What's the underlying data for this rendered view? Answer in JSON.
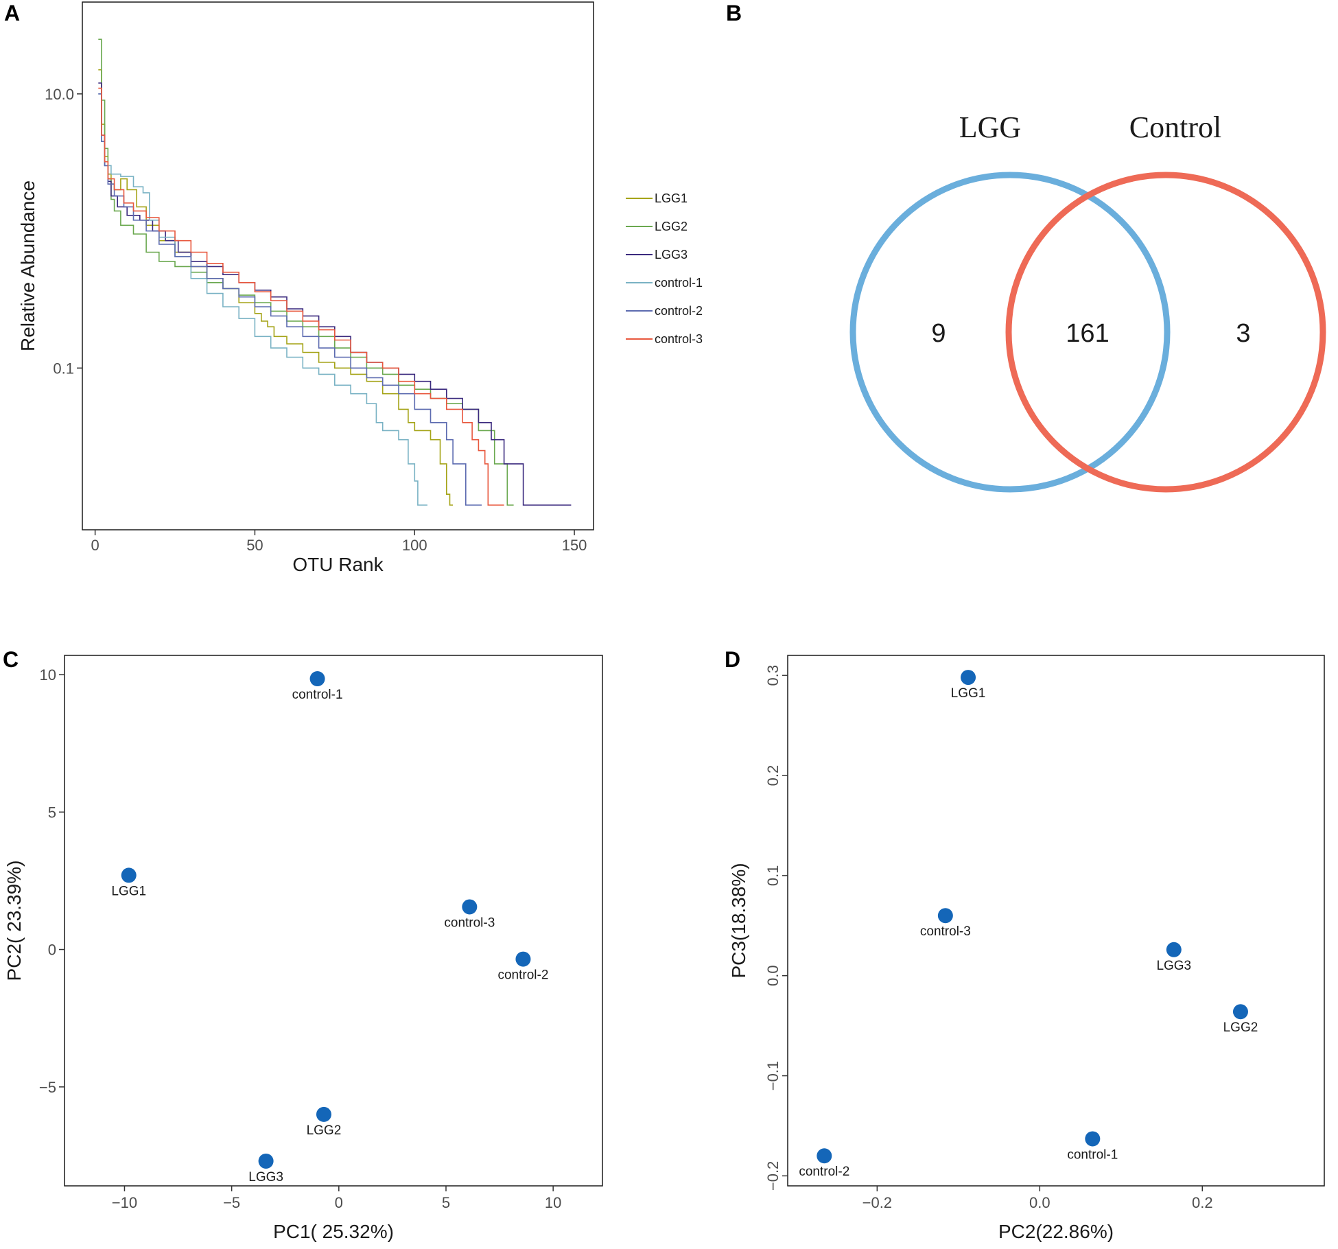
{
  "panels": {
    "a": "A",
    "b": "B",
    "c": "C",
    "d": "D"
  },
  "chart_data": [
    {
      "id": "A",
      "type": "line",
      "title": "",
      "xlabel": "OTU Rank",
      "ylabel": "Relative Abundance",
      "xlim": [
        -4,
        156
      ],
      "ylim_log10": [
        -2.18,
        1.67
      ],
      "y_scale": "log",
      "xticks": [
        0,
        50,
        100,
        150
      ],
      "xtick_labels": [
        "0",
        "50",
        "100",
        "150"
      ],
      "yticks": [
        10.0,
        0.1
      ],
      "ytick_labels": [
        "10.0",
        "0.1"
      ],
      "legend_position": "right",
      "series": [
        {
          "name": "LGG1",
          "color": "#a5a418",
          "points": [
            [
              1,
              15
            ],
            [
              2,
              6
            ],
            [
              3,
              3.5
            ],
            [
              4,
              2.6
            ],
            [
              5,
              2.2
            ],
            [
              6,
              2.0
            ],
            [
              8,
              2.4
            ],
            [
              10,
              2.0
            ],
            [
              13,
              1.5
            ],
            [
              16,
              1.1
            ],
            [
              20,
              0.85
            ],
            [
              25,
              0.7
            ],
            [
              30,
              0.55
            ],
            [
              35,
              0.45
            ],
            [
              40,
              0.38
            ],
            [
              45,
              0.3
            ],
            [
              50,
              0.25
            ],
            [
              52,
              0.22
            ],
            [
              54,
              0.2
            ],
            [
              56,
              0.17
            ],
            [
              60,
              0.15
            ],
            [
              65,
              0.13
            ],
            [
              70,
              0.11
            ],
            [
              75,
              0.1
            ],
            [
              80,
              0.09
            ],
            [
              85,
              0.08
            ],
            [
              90,
              0.065
            ],
            [
              95,
              0.05
            ],
            [
              98,
              0.04
            ],
            [
              100,
              0.035
            ],
            [
              105,
              0.03
            ],
            [
              108,
              0.02
            ],
            [
              110,
              0.012
            ],
            [
              111,
              0.01
            ],
            [
              112,
              0.01
            ]
          ]
        },
        {
          "name": "LGG2",
          "color": "#6aa84f",
          "points": [
            [
              1,
              25
            ],
            [
              2,
              9
            ],
            [
              3,
              4
            ],
            [
              4,
              2.4
            ],
            [
              5,
              1.7
            ],
            [
              6,
              1.4
            ],
            [
              8,
              1.1
            ],
            [
              12,
              0.95
            ],
            [
              16,
              0.7
            ],
            [
              20,
              0.6
            ],
            [
              25,
              0.55
            ],
            [
              30,
              0.5
            ],
            [
              35,
              0.42
            ],
            [
              40,
              0.38
            ],
            [
              45,
              0.34
            ],
            [
              50,
              0.3
            ],
            [
              55,
              0.26
            ],
            [
              60,
              0.22
            ],
            [
              65,
              0.2
            ],
            [
              70,
              0.17
            ],
            [
              75,
              0.14
            ],
            [
              80,
              0.12
            ],
            [
              85,
              0.1
            ],
            [
              90,
              0.09
            ],
            [
              95,
              0.075
            ],
            [
              100,
              0.07
            ],
            [
              105,
              0.06
            ],
            [
              110,
              0.055
            ],
            [
              115,
              0.05
            ],
            [
              120,
              0.035
            ],
            [
              125,
              0.02
            ],
            [
              128,
              0.02
            ],
            [
              129,
              0.01
            ],
            [
              131,
              0.01
            ]
          ]
        },
        {
          "name": "LGG3",
          "color": "#3b2a7e",
          "points": [
            [
              1,
              12
            ],
            [
              2,
              5
            ],
            [
              3,
              3
            ],
            [
              4,
              2.3
            ],
            [
              5,
              1.8
            ],
            [
              7,
              1.5
            ],
            [
              10,
              1.3
            ],
            [
              14,
              1.2
            ],
            [
              18,
              1.0
            ],
            [
              22,
              0.85
            ],
            [
              26,
              0.7
            ],
            [
              30,
              0.6
            ],
            [
              35,
              0.55
            ],
            [
              40,
              0.48
            ],
            [
              45,
              0.42
            ],
            [
              50,
              0.37
            ],
            [
              55,
              0.33
            ],
            [
              60,
              0.27
            ],
            [
              65,
              0.24
            ],
            [
              70,
              0.2
            ],
            [
              75,
              0.17
            ],
            [
              80,
              0.13
            ],
            [
              85,
              0.11
            ],
            [
              90,
              0.1
            ],
            [
              95,
              0.09
            ],
            [
              100,
              0.08
            ],
            [
              105,
              0.07
            ],
            [
              110,
              0.06
            ],
            [
              115,
              0.05
            ],
            [
              120,
              0.04
            ],
            [
              124,
              0.03
            ],
            [
              128,
              0.02
            ],
            [
              133,
              0.02
            ],
            [
              134,
              0.01
            ],
            [
              149,
              0.01
            ]
          ]
        },
        {
          "name": "control-1",
          "color": "#79b2c4",
          "points": [
            [
              1,
              10
            ],
            [
              2,
              4.5
            ],
            [
              3,
              3
            ],
            [
              5,
              2.6
            ],
            [
              8,
              2.5
            ],
            [
              12,
              2.1
            ],
            [
              15,
              1.9
            ],
            [
              17,
              1.2
            ],
            [
              20,
              0.9
            ],
            [
              25,
              0.65
            ],
            [
              30,
              0.45
            ],
            [
              35,
              0.35
            ],
            [
              40,
              0.28
            ],
            [
              45,
              0.23
            ],
            [
              50,
              0.17
            ],
            [
              55,
              0.14
            ],
            [
              60,
              0.12
            ],
            [
              65,
              0.1
            ],
            [
              70,
              0.09
            ],
            [
              75,
              0.075
            ],
            [
              80,
              0.065
            ],
            [
              85,
              0.055
            ],
            [
              88,
              0.04
            ],
            [
              90,
              0.035
            ],
            [
              95,
              0.03
            ],
            [
              98,
              0.02
            ],
            [
              100,
              0.015
            ],
            [
              101,
              0.01
            ],
            [
              104,
              0.01
            ]
          ]
        },
        {
          "name": "control-2",
          "color": "#5c6bb0",
          "points": [
            [
              1,
              10
            ],
            [
              2,
              4.5
            ],
            [
              3,
              3
            ],
            [
              4,
              2.2
            ],
            [
              6,
              1.8
            ],
            [
              9,
              1.5
            ],
            [
              12,
              1.2
            ],
            [
              16,
              1.0
            ],
            [
              20,
              0.8
            ],
            [
              25,
              0.65
            ],
            [
              30,
              0.55
            ],
            [
              35,
              0.45
            ],
            [
              40,
              0.38
            ],
            [
              45,
              0.33
            ],
            [
              50,
              0.28
            ],
            [
              55,
              0.24
            ],
            [
              60,
              0.2
            ],
            [
              65,
              0.17
            ],
            [
              70,
              0.14
            ],
            [
              75,
              0.12
            ],
            [
              80,
              0.1
            ],
            [
              85,
              0.085
            ],
            [
              90,
              0.075
            ],
            [
              95,
              0.065
            ],
            [
              100,
              0.05
            ],
            [
              105,
              0.04
            ],
            [
              110,
              0.03
            ],
            [
              112,
              0.02
            ],
            [
              115,
              0.02
            ],
            [
              116,
              0.01
            ],
            [
              121,
              0.01
            ]
          ]
        },
        {
          "name": "control-3",
          "color": "#e8583e",
          "points": [
            [
              1,
              11
            ],
            [
              2,
              5
            ],
            [
              3,
              3.2
            ],
            [
              4,
              2.4
            ],
            [
              6,
              2.0
            ],
            [
              9,
              1.6
            ],
            [
              12,
              1.4
            ],
            [
              16,
              1.25
            ],
            [
              20,
              1.0
            ],
            [
              25,
              0.85
            ],
            [
              30,
              0.7
            ],
            [
              35,
              0.58
            ],
            [
              40,
              0.5
            ],
            [
              45,
              0.42
            ],
            [
              50,
              0.36
            ],
            [
              55,
              0.31
            ],
            [
              60,
              0.26
            ],
            [
              65,
              0.22
            ],
            [
              70,
              0.19
            ],
            [
              75,
              0.16
            ],
            [
              80,
              0.13
            ],
            [
              85,
              0.11
            ],
            [
              90,
              0.1
            ],
            [
              95,
              0.08
            ],
            [
              100,
              0.065
            ],
            [
              105,
              0.06
            ],
            [
              110,
              0.05
            ],
            [
              115,
              0.04
            ],
            [
              118,
              0.03
            ],
            [
              120,
              0.025
            ],
            [
              122,
              0.02
            ],
            [
              123,
              0.01
            ],
            [
              128,
              0.01
            ]
          ]
        }
      ]
    },
    {
      "id": "B",
      "type": "venn",
      "sets": [
        "LGG",
        "Control"
      ],
      "colors": [
        "#6aaedc",
        "#ee6a56"
      ],
      "only_LGG": "9",
      "shared": "161",
      "only_Control": "3"
    },
    {
      "id": "C",
      "type": "scatter",
      "xlabel": "PC1( 25.32%)",
      "ylabel": "PC2( 23.39%)",
      "xlim": [
        -12.8,
        12.3
      ],
      "ylim": [
        -8.6,
        10.7
      ],
      "xticks": [
        -10,
        -5,
        0,
        5,
        10
      ],
      "xtick_labels": [
        "−10",
        "−5",
        "0",
        "5",
        "10"
      ],
      "yticks": [
        10,
        5,
        0,
        -5
      ],
      "ytick_labels": [
        "10",
        "5",
        "0",
        "−5"
      ],
      "point_color": "#1466b8",
      "points": [
        {
          "label": "control-1",
          "x": -1.0,
          "y": 9.85
        },
        {
          "label": "LGG1",
          "x": -9.8,
          "y": 2.7
        },
        {
          "label": "control-3",
          "x": 6.1,
          "y": 1.55
        },
        {
          "label": "control-2",
          "x": 8.6,
          "y": -0.35
        },
        {
          "label": "LGG2",
          "x": -0.7,
          "y": -6.0
        },
        {
          "label": "LGG3",
          "x": -3.4,
          "y": -7.7
        }
      ]
    },
    {
      "id": "D",
      "type": "scatter",
      "xlabel": "PC2(22.86%)",
      "ylabel": "PC3(18.38%)",
      "xlim": [
        -0.31,
        0.35
      ],
      "ylim": [
        -0.21,
        0.32
      ],
      "xticks": [
        -0.2,
        0.0,
        0.2
      ],
      "xtick_labels": [
        "−0.2",
        "0.0",
        "0.2"
      ],
      "yticks": [
        0.3,
        0.2,
        0.1,
        0.0,
        -0.1,
        -0.2
      ],
      "ytick_labels": [
        "0.3",
        "0.2",
        "0.1",
        "0.0",
        "−0.1",
        "−0.2"
      ],
      "point_color": "#1466b8",
      "points": [
        {
          "label": "LGG1",
          "x": -0.088,
          "y": 0.298
        },
        {
          "label": "control-3",
          "x": -0.116,
          "y": 0.06
        },
        {
          "label": "LGG3",
          "x": 0.165,
          "y": 0.026
        },
        {
          "label": "LGG2",
          "x": 0.247,
          "y": -0.036
        },
        {
          "label": "control-1",
          "x": 0.065,
          "y": -0.163
        },
        {
          "label": "control-2",
          "x": -0.265,
          "y": -0.18
        }
      ]
    }
  ]
}
